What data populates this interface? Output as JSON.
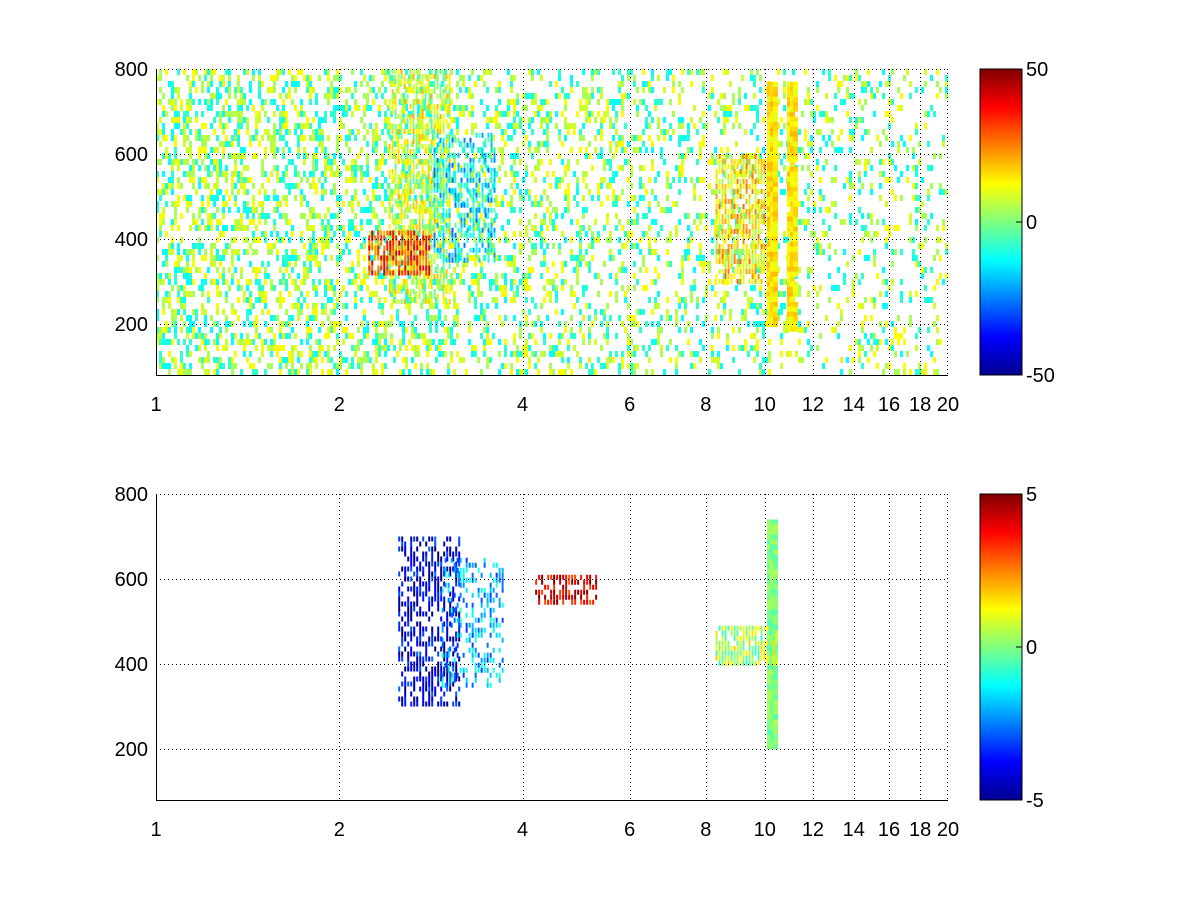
{
  "chart_data": [
    {
      "type": "heatmap",
      "title": "",
      "xlabel": "",
      "ylabel": "",
      "xscale": "log",
      "xlim": [
        1,
        20
      ],
      "ylim": [
        80,
        800
      ],
      "xticks": [
        1,
        2,
        4,
        6,
        8,
        10,
        12,
        14,
        16,
        18,
        20
      ],
      "xtick_labels": [
        "1",
        "2",
        "4",
        "6",
        "8",
        "10",
        "12",
        "14",
        "16",
        "18",
        "20"
      ],
      "yticks": [
        200,
        400,
        600,
        800
      ],
      "ytick_labels": [
        "200",
        "400",
        "600",
        "800"
      ],
      "grid": true,
      "colormap": "jet",
      "clim": [
        -50,
        50
      ],
      "colorbar_ticks": [
        -50,
        0,
        50
      ],
      "colorbar_tick_labels": [
        "-50",
        "0",
        "50"
      ],
      "features": [
        {
          "x": 2.7,
          "y": [
            250,
            800
          ],
          "value": 8,
          "density": 0.65
        },
        {
          "x": 2.5,
          "y": [
            320,
            420
          ],
          "value": 30,
          "density": 0.8
        },
        {
          "x": 3.2,
          "y": [
            350,
            650
          ],
          "value": -15,
          "density": 0.5
        },
        {
          "x": 9.3,
          "y": [
            300,
            600
          ],
          "value": 15,
          "density": 0.8
        },
        {
          "x": 10.2,
          "y": [
            200,
            770
          ],
          "value": 15,
          "density": 1.0
        },
        {
          "x": 11.0,
          "y": [
            190,
            770
          ],
          "value": 15,
          "density": 0.95
        }
      ],
      "background_values": [
        -12,
        -8,
        4,
        8,
        12
      ]
    },
    {
      "type": "heatmap",
      "title": "",
      "xlabel": "",
      "ylabel": "",
      "xscale": "log",
      "xlim": [
        1,
        20
      ],
      "ylim": [
        80,
        800
      ],
      "xticks": [
        1,
        2,
        4,
        6,
        8,
        10,
        12,
        14,
        16,
        18,
        20
      ],
      "xtick_labels": [
        "1",
        "2",
        "4",
        "6",
        "8",
        "10",
        "12",
        "14",
        "16",
        "18",
        "20"
      ],
      "yticks": [
        200,
        400,
        600,
        800
      ],
      "ytick_labels": [
        "200",
        "400",
        "600",
        "800"
      ],
      "grid": true,
      "colormap": "jet",
      "clim": [
        -5,
        5
      ],
      "colorbar_ticks": [
        -5,
        0,
        5
      ],
      "colorbar_tick_labels": [
        "-5",
        "0",
        "5"
      ],
      "features": [
        {
          "x": 2.8,
          "y": [
            300,
            700
          ],
          "value": -4,
          "density": 0.55
        },
        {
          "x": 3.3,
          "y": [
            350,
            650
          ],
          "value": -2,
          "density": 0.4
        },
        {
          "x": 10.2,
          "y": [
            205,
            740
          ],
          "value": 0,
          "density": 1.0
        },
        {
          "x": 9.3,
          "y": [
            400,
            490
          ],
          "value": 0.5,
          "density": 0.9
        },
        {
          "x": 4.7,
          "y": [
            540,
            610
          ],
          "value": 4,
          "density": 0.6
        }
      ],
      "background_values": []
    }
  ]
}
